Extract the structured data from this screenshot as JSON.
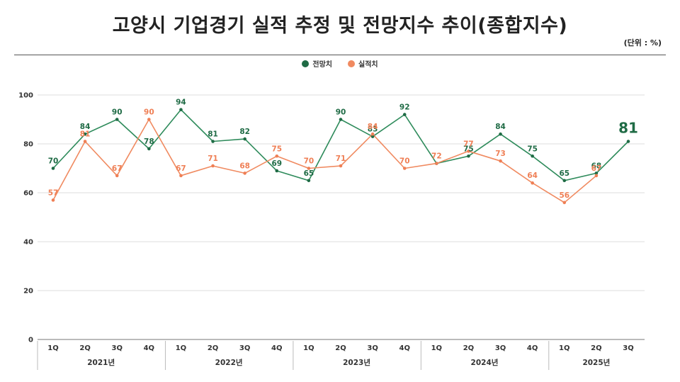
{
  "title": "고양시 기업경기 실적 추정 및 전망지수 추이(종합지수)",
  "unit_label": "(단위 : %)",
  "colors": {
    "forecast": "#2e8b5b",
    "actual": "#f08a60",
    "forecast_label": "#1f6b45",
    "actual_label": "#ef7f55"
  },
  "chart_data": {
    "type": "line",
    "title": "고양시 기업경기 실적 추정 및 전망지수 추이(종합지수)",
    "xlabel": "",
    "ylabel": "",
    "ylim": [
      0,
      100
    ],
    "yticks": [
      "0",
      "20",
      "40",
      "60",
      "80",
      "100"
    ],
    "legend_position": "top-center",
    "categories": [
      "1Q",
      "2Q",
      "3Q",
      "4Q",
      "1Q",
      "2Q",
      "3Q",
      "4Q",
      "1Q",
      "2Q",
      "3Q",
      "4Q",
      "1Q",
      "2Q",
      "3Q",
      "4Q",
      "1Q",
      "2Q",
      "3Q"
    ],
    "years": [
      {
        "label": "2021년",
        "span": 4
      },
      {
        "label": "2022년",
        "span": 4
      },
      {
        "label": "2023년",
        "span": 4
      },
      {
        "label": "2024년",
        "span": 4
      },
      {
        "label": "2025년",
        "span": 3
      }
    ],
    "series": [
      {
        "name": "전망치",
        "key": "forecast",
        "values": [
          70,
          84,
          90,
          78,
          94,
          81,
          82,
          69,
          65,
          90,
          83,
          92,
          72,
          75,
          84,
          75,
          65,
          68,
          81
        ],
        "labels": [
          "70",
          "84",
          "90",
          "78",
          "94",
          "81",
          "82",
          "69",
          "65",
          "90",
          "83",
          "92",
          "",
          "75",
          "84",
          "75",
          "65",
          "68",
          "81"
        ]
      },
      {
        "name": "실적치",
        "key": "actual",
        "values": [
          57,
          81,
          67,
          90,
          67,
          71,
          68,
          75,
          70,
          71,
          84,
          70,
          72,
          77,
          73,
          64,
          56,
          67,
          null
        ],
        "labels": [
          "57",
          "81",
          "67",
          "90",
          "67",
          "71",
          "68",
          "75",
          "70",
          "71",
          "84",
          "70",
          "72",
          "77",
          "73",
          "64",
          "56",
          "67",
          ""
        ]
      }
    ]
  }
}
